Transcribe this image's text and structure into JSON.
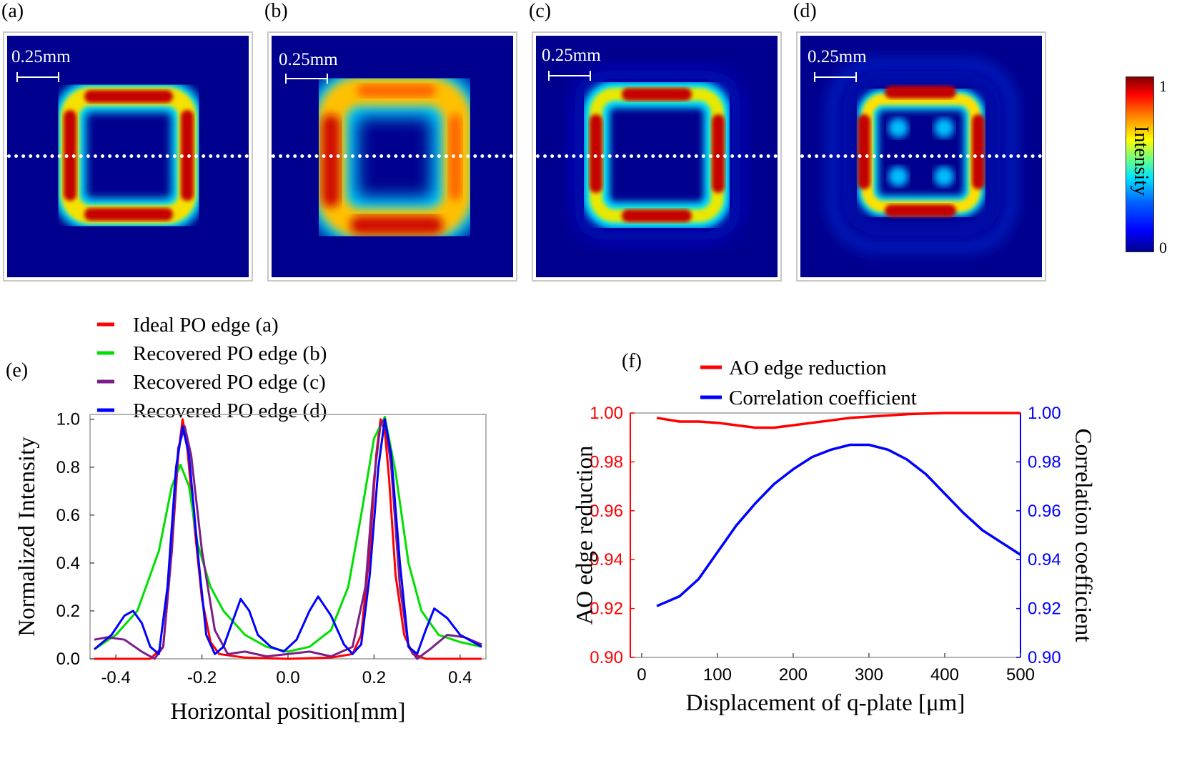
{
  "panels": {
    "a": "(a)",
    "b": "(b)",
    "c": "(c)",
    "d": "(d)",
    "e": "(e)",
    "f": "(f)"
  },
  "scale_bar": "0.25mm",
  "colorbar": {
    "label": "Intensity",
    "max": "1",
    "min": "0"
  },
  "colors": {
    "red": "#ff0000",
    "green": "#00e000",
    "purple": "#7b1e8a",
    "blue": "#0000ff",
    "map_bg": "#00008f"
  },
  "chart_data": [
    {
      "id": "e",
      "type": "line",
      "xlabel": "Horizontal position[mm]",
      "ylabel": "Normalized Intensity",
      "xlim": [
        -0.46,
        0.46
      ],
      "ylim": [
        0,
        1.02
      ],
      "xticks": [
        -0.4,
        -0.2,
        0.0,
        0.2,
        0.4
      ],
      "xtick_labels": [
        "-0.4",
        "-0.2",
        "0.0",
        "0.2",
        "0.4"
      ],
      "yticks": [
        0,
        0.2,
        0.4,
        0.6,
        0.8,
        1.0
      ],
      "ytick_labels": [
        "0.0",
        "0.2",
        "0.4",
        "0.6",
        "0.8",
        "1.0"
      ],
      "legend": [
        {
          "label": "Ideal PO edge (a)",
          "color": "#ff0000"
        },
        {
          "label": "Recovered PO edge (b)",
          "color": "#00e000"
        },
        {
          "label": "Recovered PO edge (c)",
          "color": "#7b1e8a"
        },
        {
          "label": "Recovered PO edge (d)",
          "color": "#0000ff"
        }
      ],
      "series": [
        {
          "name": "Ideal PO edge (a)",
          "color": "#ff0000",
          "x": [
            -0.45,
            -0.32,
            -0.29,
            -0.27,
            -0.255,
            -0.245,
            -0.235,
            -0.22,
            -0.2,
            -0.18,
            -0.16,
            -0.1,
            0.0,
            0.1,
            0.15,
            0.17,
            0.19,
            0.205,
            0.215,
            0.225,
            0.235,
            0.25,
            0.27,
            0.29,
            0.32,
            0.45
          ],
          "y": [
            0.0,
            0.0,
            0.05,
            0.45,
            0.85,
            1.0,
            0.9,
            0.6,
            0.25,
            0.07,
            0.02,
            0.005,
            0.0,
            0.005,
            0.02,
            0.1,
            0.45,
            0.85,
            1.0,
            0.95,
            0.75,
            0.35,
            0.1,
            0.02,
            0.0,
            0.0
          ]
        },
        {
          "name": "Recovered PO edge (b)",
          "color": "#00e000",
          "x": [
            -0.45,
            -0.4,
            -0.35,
            -0.3,
            -0.27,
            -0.25,
            -0.23,
            -0.21,
            -0.18,
            -0.15,
            -0.1,
            -0.05,
            0.0,
            0.05,
            0.1,
            0.14,
            0.17,
            0.2,
            0.225,
            0.25,
            0.28,
            0.31,
            0.35,
            0.4,
            0.45
          ],
          "y": [
            0.04,
            0.1,
            0.2,
            0.45,
            0.72,
            0.81,
            0.72,
            0.48,
            0.3,
            0.2,
            0.1,
            0.05,
            0.03,
            0.05,
            0.12,
            0.3,
            0.6,
            0.92,
            1.01,
            0.78,
            0.4,
            0.2,
            0.1,
            0.07,
            0.05
          ]
        },
        {
          "name": "Recovered PO edge (c)",
          "color": "#7b1e8a",
          "x": [
            -0.45,
            -0.42,
            -0.38,
            -0.34,
            -0.31,
            -0.29,
            -0.27,
            -0.255,
            -0.24,
            -0.225,
            -0.2,
            -0.17,
            -0.14,
            -0.1,
            -0.05,
            0.0,
            0.05,
            0.1,
            0.15,
            0.18,
            0.2,
            0.215,
            0.225,
            0.24,
            0.26,
            0.28,
            0.3,
            0.33,
            0.37,
            0.41,
            0.45
          ],
          "y": [
            0.08,
            0.09,
            0.08,
            0.03,
            0.0,
            0.05,
            0.45,
            0.88,
            0.97,
            0.85,
            0.45,
            0.12,
            0.02,
            0.03,
            0.01,
            0.02,
            0.03,
            0.01,
            0.05,
            0.3,
            0.75,
            0.98,
            1.0,
            0.8,
            0.3,
            0.05,
            0.0,
            0.04,
            0.1,
            0.09,
            0.06
          ]
        },
        {
          "name": "Recovered PO edge (d)",
          "color": "#0000ff",
          "x": [
            -0.45,
            -0.41,
            -0.38,
            -0.36,
            -0.34,
            -0.32,
            -0.3,
            -0.28,
            -0.26,
            -0.245,
            -0.23,
            -0.21,
            -0.19,
            -0.17,
            -0.15,
            -0.13,
            -0.11,
            -0.09,
            -0.07,
            -0.04,
            -0.01,
            0.02,
            0.05,
            0.07,
            0.1,
            0.13,
            0.15,
            0.17,
            0.19,
            0.21,
            0.225,
            0.24,
            0.26,
            0.28,
            0.3,
            0.32,
            0.34,
            0.37,
            0.4,
            0.45
          ],
          "y": [
            0.04,
            0.1,
            0.18,
            0.2,
            0.15,
            0.05,
            0.02,
            0.3,
            0.8,
            0.97,
            0.85,
            0.45,
            0.1,
            0.02,
            0.05,
            0.15,
            0.25,
            0.2,
            0.1,
            0.05,
            0.03,
            0.08,
            0.2,
            0.26,
            0.18,
            0.06,
            0.02,
            0.06,
            0.35,
            0.8,
            1.0,
            0.85,
            0.4,
            0.05,
            0.02,
            0.12,
            0.21,
            0.17,
            0.1,
            0.05
          ]
        }
      ]
    },
    {
      "id": "f",
      "type": "line",
      "xlabel": "Displacement of q-plate [μm]",
      "ylabel_left": "AO edge reduction",
      "ylabel_right": "Correlation coefficient",
      "xlim": [
        -15,
        500
      ],
      "ylim_left": [
        0.9,
        1.0
      ],
      "ylim_right": [
        0.9,
        1.0
      ],
      "xticks": [
        0,
        100,
        200,
        300,
        400,
        500
      ],
      "xtick_labels": [
        "0",
        "100",
        "200",
        "300",
        "400",
        "500"
      ],
      "yticks": [
        0.9,
        0.92,
        0.94,
        0.96,
        0.98,
        1.0
      ],
      "ytick_labels": [
        "0.90",
        "0.92",
        "0.94",
        "0.96",
        "0.98",
        "1.00"
      ],
      "legend": [
        {
          "label": "AO edge reduction",
          "color": "#ff0000"
        },
        {
          "label": "Correlation coefficient",
          "color": "#0000ff"
        }
      ],
      "series": [
        {
          "name": "AO edge reduction",
          "axis": "left",
          "color": "#ff0000",
          "x": [
            20,
            50,
            75,
            100,
            125,
            150,
            175,
            200,
            225,
            250,
            275,
            300,
            325,
            350,
            375,
            400,
            425,
            450,
            475,
            500
          ],
          "y": [
            0.998,
            0.9965,
            0.9965,
            0.996,
            0.995,
            0.994,
            0.994,
            0.995,
            0.996,
            0.997,
            0.998,
            0.9985,
            0.999,
            0.9995,
            0.9998,
            1.0,
            1.0,
            1.0,
            1.0,
            1.0
          ]
        },
        {
          "name": "Correlation coefficient",
          "axis": "right",
          "color": "#0000ff",
          "x": [
            20,
            50,
            75,
            100,
            125,
            150,
            175,
            200,
            225,
            250,
            275,
            300,
            325,
            350,
            375,
            400,
            425,
            450,
            475,
            500
          ],
          "y": [
            0.921,
            0.925,
            0.932,
            0.943,
            0.954,
            0.963,
            0.971,
            0.977,
            0.982,
            0.985,
            0.987,
            0.987,
            0.985,
            0.981,
            0.975,
            0.967,
            0.959,
            0.952,
            0.947,
            0.942
          ]
        }
      ]
    }
  ]
}
